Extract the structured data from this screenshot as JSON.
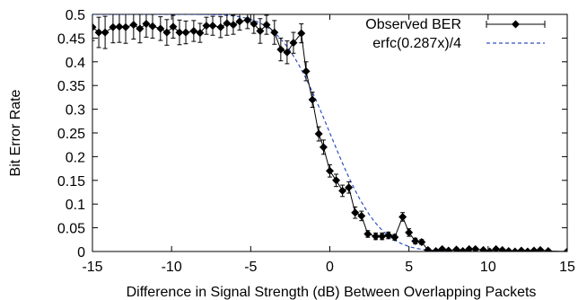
{
  "chart_data": {
    "type": "scatter",
    "xlabel": "Difference in Signal Strength (dB) Between Overlapping Packets",
    "ylabel": "Bit Error Rate",
    "xlim": [
      -15,
      15
    ],
    "ylim": [
      0,
      0.5
    ],
    "x_ticks": [
      -15,
      -10,
      -5,
      0,
      5,
      10,
      15
    ],
    "x_tick_labels": [
      "-15",
      "-10",
      "-5",
      "0",
      "5",
      "10",
      "15"
    ],
    "y_ticks": [
      0,
      0.05,
      0.1,
      0.15,
      0.2,
      0.25,
      0.3,
      0.35,
      0.4,
      0.45,
      0.5
    ],
    "y_tick_labels": [
      "0",
      "0.05",
      "0.1",
      "0.15",
      "0.2",
      "0.25",
      "0.3",
      "0.35",
      "0.4",
      "0.45",
      "0.5"
    ],
    "legend_position": "top-right",
    "grid": false,
    "series": [
      {
        "name": "Observed BER",
        "style": "points-with-errorbars",
        "color": "#000000",
        "x": [
          -15,
          -14.6,
          -14.2,
          -13.7,
          -13.3,
          -12.9,
          -12.4,
          -12.0,
          -11.6,
          -11.2,
          -10.7,
          -10.3,
          -9.9,
          -9.5,
          -9.1,
          -8.6,
          -8.2,
          -7.8,
          -7.4,
          -6.9,
          -6.5,
          -6.1,
          -5.7,
          -5.2,
          -4.8,
          -4.4,
          -4.0,
          -3.5,
          -3.1,
          -2.7,
          -2.3,
          -1.8,
          -1.5,
          -1.1,
          -0.7,
          -0.4,
          0.0,
          0.4,
          0.8,
          1.2,
          1.6,
          2.0,
          2.4,
          2.9,
          3.3,
          3.7,
          4.1,
          4.6,
          5.0,
          5.4,
          5.8,
          6.2,
          6.7,
          7.1,
          7.5,
          8.0,
          8.4,
          8.8,
          9.2,
          9.7,
          10.1,
          10.5,
          10.9,
          11.3,
          11.7,
          12.1,
          12.5,
          12.9,
          13.3,
          13.8,
          15.0
        ],
        "y": [
          0.473,
          0.462,
          0.462,
          0.473,
          0.474,
          0.473,
          0.478,
          0.47,
          0.48,
          0.475,
          0.47,
          0.462,
          0.474,
          0.462,
          0.462,
          0.465,
          0.461,
          0.476,
          0.476,
          0.473,
          0.481,
          0.478,
          0.485,
          0.488,
          0.48,
          0.465,
          0.478,
          0.462,
          0.426,
          0.42,
          0.44,
          0.46,
          0.38,
          0.32,
          0.248,
          0.22,
          0.17,
          0.15,
          0.128,
          0.135,
          0.082,
          0.075,
          0.037,
          0.032,
          0.032,
          0.034,
          0.03,
          0.073,
          0.04,
          0.022,
          0.02,
          0.003,
          0.001,
          0.005,
          0.002,
          0.004,
          0.001,
          0.005,
          0.005,
          0.003,
          0.0,
          0.005,
          0.003,
          0.001,
          0.0,
          0.002,
          0.0,
          0.002,
          0.003,
          0.001,
          0.0
        ],
        "err": [
          0.028,
          0.032,
          0.034,
          0.033,
          0.033,
          0.034,
          0.03,
          0.03,
          0.028,
          0.025,
          0.025,
          0.027,
          0.024,
          0.026,
          0.024,
          0.022,
          0.02,
          0.018,
          0.02,
          0.022,
          0.025,
          0.02,
          0.018,
          0.018,
          0.02,
          0.026,
          0.02,
          0.025,
          0.024,
          0.024,
          0.022,
          0.02,
          0.02,
          0.016,
          0.015,
          0.015,
          0.013,
          0.013,
          0.012,
          0.012,
          0.012,
          0.01,
          0.007,
          0.007,
          0.007,
          0.007,
          0.006,
          0.009,
          0.008,
          0.006,
          0.005,
          0.004,
          0.003,
          0.003,
          0.002,
          0.003,
          0.002,
          0.003,
          0.003,
          0.002,
          0.001,
          0.002,
          0.002,
          0.001,
          0.001,
          0.001,
          0.001,
          0.001,
          0.001,
          0.001,
          0.001
        ]
      },
      {
        "name": "erfc(0.287x)/4",
        "style": "dashed-line",
        "color": "#3050c0",
        "function": "erfc(0.287x)/4"
      }
    ]
  }
}
